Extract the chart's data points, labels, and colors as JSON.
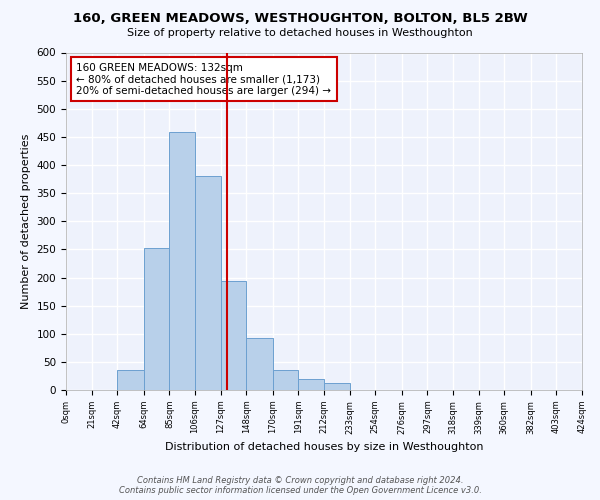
{
  "title": "160, GREEN MEADOWS, WESTHOUGHTON, BOLTON, BL5 2BW",
  "subtitle": "Size of property relative to detached houses in Westhoughton",
  "xlabel": "Distribution of detached houses by size in Westhoughton",
  "ylabel": "Number of detached properties",
  "bin_edges": [
    0,
    21,
    42,
    64,
    85,
    106,
    127,
    148,
    170,
    191,
    212,
    233,
    254,
    276,
    297,
    318,
    339,
    360,
    382,
    403,
    424
  ],
  "bar_heights": [
    0,
    0,
    35,
    252,
    458,
    381,
    193,
    93,
    35,
    20,
    12,
    0,
    0,
    0,
    0,
    0,
    0,
    0,
    0,
    0
  ],
  "bar_color": "#b8d0ea",
  "bar_edge_color": "#6ca0d0",
  "vertical_line_x": 132,
  "vertical_line_color": "#cc0000",
  "annotation_text": "160 GREEN MEADOWS: 132sqm\n← 80% of detached houses are smaller (1,173)\n20% of semi-detached houses are larger (294) →",
  "annotation_box_color": "#ffffff",
  "annotation_box_edge_color": "#cc0000",
  "ylim": [
    0,
    600
  ],
  "yticks": [
    0,
    50,
    100,
    150,
    200,
    250,
    300,
    350,
    400,
    450,
    500,
    550,
    600
  ],
  "tick_labels": [
    "0sqm",
    "21sqm",
    "42sqm",
    "64sqm",
    "85sqm",
    "106sqm",
    "127sqm",
    "148sqm",
    "170sqm",
    "191sqm",
    "212sqm",
    "233sqm",
    "254sqm",
    "276sqm",
    "297sqm",
    "318sqm",
    "339sqm",
    "360sqm",
    "382sqm",
    "403sqm",
    "424sqm"
  ],
  "footer_line1": "Contains HM Land Registry data © Crown copyright and database right 2024.",
  "footer_line2": "Contains public sector information licensed under the Open Government Licence v3.0.",
  "bg_color": "#f4f7ff",
  "plot_bg_color": "#eef2fc",
  "grid_color": "#ffffff"
}
